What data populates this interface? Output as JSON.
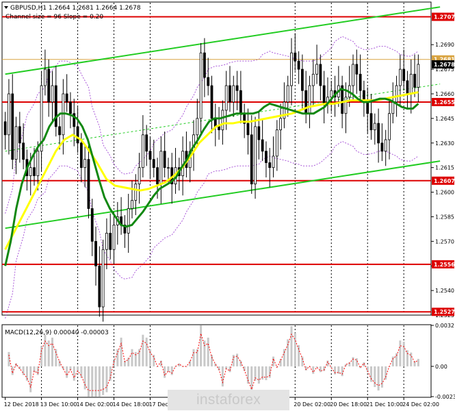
{
  "header": {
    "symbol_line": "GBPUSD,H1  1.2664 1.2681 1.2664 1.2678",
    "indicator_line": "Channel size = 96 Slope = 0.20"
  },
  "macd_label": "MACD(12,26,9) 0.00040 -0.00003",
  "watermark": "instaforex",
  "colors": {
    "candle": "#000000",
    "level_line": "#dd0000",
    "channel_line": "#22cc22",
    "ma_green": "#118811",
    "ma_yellow": "#ffff00",
    "bands": "#a855d8",
    "ask_line": "#d9a441",
    "macd_hist": "#c8c8c8",
    "macd_signal": "#ff0000",
    "grid": "#000000"
  },
  "price_axis": {
    "ticks": [
      "1.2690",
      "1.2675",
      "1.2660",
      "1.2645",
      "1.2630",
      "1.2615",
      "1.2600",
      "1.2585",
      "1.2570",
      "1.2555",
      "1.2540",
      "1.2525"
    ],
    "tick_values": [
      1.269,
      1.2675,
      1.266,
      1.2645,
      1.263,
      1.2615,
      1.26,
      1.2585,
      1.257,
      1.2555,
      1.254,
      1.2525
    ],
    "labels": [
      {
        "text": "1.2707",
        "value": 1.2707,
        "kind": "level"
      },
      {
        "text": "1.2681",
        "value": 1.2681,
        "kind": "ask"
      },
      {
        "text": "1.2678",
        "value": 1.2678,
        "kind": "current"
      },
      {
        "text": "1.2655",
        "value": 1.2655,
        "kind": "level"
      },
      {
        "text": "1.2607",
        "value": 1.2607,
        "kind": "level"
      },
      {
        "text": "1.2556",
        "value": 1.2556,
        "kind": "level"
      },
      {
        "text": "1.2527",
        "value": 1.2527,
        "kind": "level"
      }
    ]
  },
  "macd_axis": {
    "ticks": [
      "0.00321",
      "0.00",
      "-0.00237"
    ],
    "tick_values": [
      0.00321,
      0.0,
      -0.00237
    ]
  },
  "time_axis": {
    "labels": [
      "12 Dec 2018",
      "13 Dec 10:00",
      "14 Dec 02:00",
      "14 Dec 18:00",
      "17 Dec",
      "20 Dec 02:00",
      "20 Dec 18:00",
      "21 Dec 10:00",
      "24 Dec 02:00"
    ],
    "label_bars": [
      0,
      10,
      20,
      30,
      40,
      80,
      90,
      100,
      110
    ]
  },
  "chart_data": {
    "type": "candlestick",
    "symbol": "GBPUSD",
    "timeframe": "H1",
    "ohlc_last": {
      "open": 1.2664,
      "high": 1.2681,
      "low": 1.2664,
      "close": 1.2678
    },
    "y_range": [
      1.2525,
      1.2716
    ],
    "horizontal_levels": [
      1.2707,
      1.2655,
      1.2607,
      1.2556,
      1.2527
    ],
    "ask_price": 1.2681,
    "channel": {
      "upper": {
        "from_bar": 0,
        "from": 1.2672,
        "to_bar": 120,
        "to": 1.2713
      },
      "lower": {
        "from_bar": 0,
        "from": 1.2578,
        "to_bar": 120,
        "to": 1.2619
      },
      "middle": {
        "from_bar": 0,
        "from": 1.2625,
        "to_bar": 120,
        "to": 1.2666
      }
    },
    "closes": [
      1.2635,
      1.266,
      1.262,
      1.264,
      1.263,
      1.262,
      1.261,
      1.2615,
      1.261,
      1.2625,
      1.2665,
      1.2675,
      1.2655,
      1.2665,
      1.264,
      1.2635,
      1.266,
      1.2655,
      1.2648,
      1.264,
      1.263,
      1.2615,
      1.262,
      1.259,
      1.257,
      1.2555,
      1.253,
      1.2565,
      1.2575,
      1.2565,
      1.258,
      1.2585,
      1.258,
      1.2575,
      1.259,
      1.2595,
      1.2605,
      1.2615,
      1.2635,
      1.2625,
      1.262,
      1.2615,
      1.2605,
      1.2625,
      1.2615,
      1.2615,
      1.2605,
      1.2615,
      1.261,
      1.2625,
      1.2615,
      1.2625,
      1.2635,
      1.2645,
      1.2685,
      1.267,
      1.2665,
      1.2645,
      1.264,
      1.2638,
      1.265,
      1.2665,
      1.2655,
      1.2665,
      1.2662,
      1.2648,
      1.2642,
      1.2635,
      1.2605,
      1.264,
      1.2632,
      1.2625,
      1.2618,
      1.2615,
      1.2622,
      1.2638,
      1.2645,
      1.2655,
      1.2665,
      1.2685,
      1.268,
      1.2675,
      1.2662,
      1.2648,
      1.2665,
      1.2672,
      1.2678,
      1.2665,
      1.2654,
      1.2658,
      1.2662,
      1.2658,
      1.2665,
      1.2648,
      1.2658,
      1.2665,
      1.2678,
      1.2672,
      1.2662,
      1.2655,
      1.2648,
      1.2638,
      1.2642,
      1.263,
      1.2625,
      1.2632,
      1.2648,
      1.2655,
      1.2665,
      1.2675,
      1.2668,
      1.266,
      1.2672,
      1.2664,
      1.2678
    ],
    "ma_green": [
      1.2555,
      1.257,
      1.259,
      1.2605,
      1.2615,
      1.2622,
      1.2628,
      1.2632,
      1.264,
      1.2645,
      1.2648,
      1.2648,
      1.2647,
      1.2645,
      1.264,
      1.2632,
      1.262,
      1.2608,
      1.2597,
      1.259,
      1.2585,
      1.258,
      1.2579,
      1.258,
      1.2584,
      1.2588,
      1.2593,
      1.2598,
      1.2602,
      1.2604,
      1.2606,
      1.2609,
      1.2615,
      1.262,
      1.2627,
      1.2632,
      1.2638,
      1.2643,
      1.2645,
      1.2645,
      1.2646,
      1.2647,
      1.2648,
      1.2648,
      1.2648,
      1.2648,
      1.2649,
      1.2652,
      1.2654,
      1.2653,
      1.2652,
      1.2651,
      1.265,
      1.2649,
      1.2648,
      1.2648,
      1.2648,
      1.265,
      1.2652,
      1.2656,
      1.266,
      1.2663,
      1.2662,
      1.266,
      1.2657,
      1.2655,
      1.2655,
      1.2656,
      1.2657,
      1.2657,
      1.2656,
      1.2654,
      1.2652,
      1.2651,
      1.2651,
      1.2654
    ],
    "ma_yellow": [
      1.2565,
      1.2575,
      1.2585,
      1.2595,
      1.2605,
      1.2615,
      1.2625,
      1.2632,
      1.2635,
      1.2632,
      1.2625,
      1.2617,
      1.2608,
      1.2604,
      1.2603,
      1.2602,
      1.2601,
      1.2602,
      1.2604,
      1.2606,
      1.261,
      1.2615,
      1.2622,
      1.263,
      1.2635,
      1.264,
      1.2642,
      1.2642,
      1.2643,
      1.2643,
      1.2644,
      1.2645,
      1.2646,
      1.2647,
      1.2648,
      1.265,
      1.2652,
      1.2653,
      1.2654,
      1.2654,
      1.2655,
      1.2656,
      1.2656,
      1.2656,
      1.2656,
      1.2657,
      1.2658,
      1.2659,
      1.266,
      1.2661
    ]
  }
}
